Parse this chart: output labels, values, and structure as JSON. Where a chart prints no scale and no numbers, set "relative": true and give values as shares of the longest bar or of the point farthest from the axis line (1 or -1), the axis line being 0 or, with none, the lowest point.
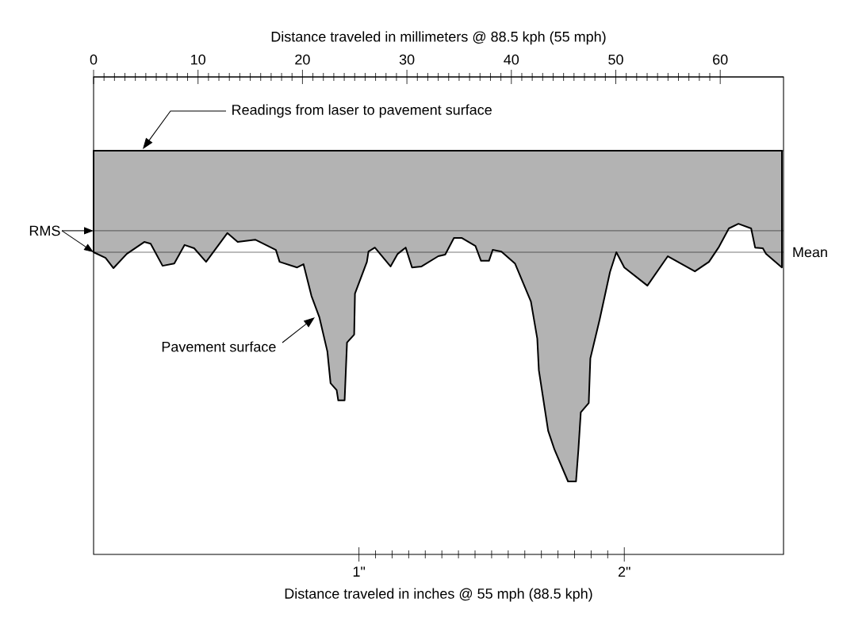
{
  "chart_data": {
    "type": "area",
    "relative": true,
    "xlabel": "Distance traveled in inches @ 55 mph (88.5 kph)",
    "x2label": "Distance traveled in millimeters @ 88.5 kph (55 mph)",
    "xlim": [
      0,
      2.6
    ],
    "x2lim": [
      0,
      66.06
    ],
    "xticks": [
      {
        "value": 1,
        "label": "1\""
      },
      {
        "value": 2,
        "label": "2\""
      }
    ],
    "x2ticks": [
      0,
      10,
      20,
      30,
      40,
      50,
      60
    ],
    "series": [
      {
        "color": "#b3b3b3",
        "x": [
          0,
          0.045,
          0.075,
          0.125,
          0.191,
          0.215,
          0.26,
          0.304,
          0.343,
          0.379,
          0.424,
          0.504,
          0.543,
          0.609,
          0.687,
          0.701,
          0.767,
          0.791,
          0.821,
          0.851,
          0.881,
          0.893,
          0.916,
          0.922,
          0.946,
          0.955,
          0.982,
          0.985,
          1.03,
          1.036,
          1.06,
          1.119,
          1.146,
          1.176,
          1.2,
          1.236,
          1.299,
          1.325,
          1.358,
          1.388,
          1.439,
          1.46,
          1.49,
          1.504,
          1.537,
          1.588,
          1.648,
          1.672,
          1.678,
          1.713,
          1.737,
          1.788,
          1.818,
          1.827,
          1.836,
          1.866,
          1.872,
          1.907,
          1.946,
          1.97,
          2.0,
          2.087,
          2.164,
          2.266,
          2.319,
          2.355,
          2.394,
          2.43,
          2.478,
          2.493,
          2.522,
          2.534,
          2.594
        ],
        "values": [
          -0.307,
          -0.324,
          -0.355,
          -0.312,
          -0.276,
          -0.281,
          -0.348,
          -0.341,
          -0.285,
          -0.295,
          -0.336,
          -0.249,
          -0.276,
          -0.269,
          -0.3,
          -0.336,
          -0.353,
          -0.343,
          -0.439,
          -0.504,
          -0.607,
          -0.703,
          -0.724,
          -0.755,
          -0.755,
          -0.58,
          -0.556,
          -0.432,
          -0.336,
          -0.305,
          -0.293,
          -0.35,
          -0.312,
          -0.293,
          -0.353,
          -0.35,
          -0.319,
          -0.314,
          -0.264,
          -0.264,
          -0.288,
          -0.333,
          -0.333,
          -0.3,
          -0.305,
          -0.341,
          -0.456,
          -0.568,
          -0.664,
          -0.847,
          -0.904,
          -1,
          -1,
          -0.904,
          -0.791,
          -0.763,
          -0.628,
          -0.511,
          -0.367,
          -0.307,
          -0.353,
          -0.408,
          -0.319,
          -0.365,
          -0.336,
          -0.293,
          -0.235,
          -0.221,
          -0.235,
          -0.293,
          -0.295,
          -0.312,
          -0.353
        ]
      }
    ],
    "ref_lines": [
      {
        "axis": "y",
        "value": -0.242,
        "label": "RMS"
      },
      {
        "axis": "y",
        "value": -0.307,
        "label": "Mean"
      }
    ],
    "annotations": [
      "Readings from laser to pavement surface",
      "Pavement surface"
    ]
  }
}
